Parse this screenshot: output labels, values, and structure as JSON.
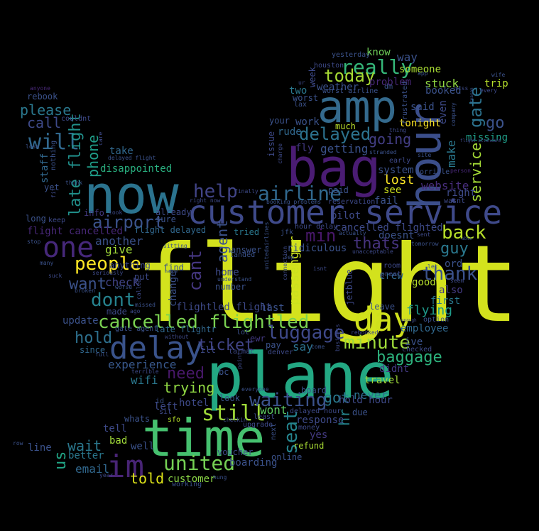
{
  "words": [
    {
      "text": "flight",
      "color": "#d3e21d"
    },
    {
      "text": "time",
      "color": "#46c06f"
    },
    {
      "text": "plane",
      "color": "#23a883"
    },
    {
      "text": "now",
      "color": "#2b738e"
    },
    {
      "text": "bag",
      "color": "#4a1c73"
    },
    {
      "text": "amp",
      "color": "#346a8d"
    },
    {
      "text": "hour",
      "color": "#3b4e8a"
    },
    {
      "text": "customer service",
      "color": "#3f4a8a"
    },
    {
      "text": "delay",
      "color": "#3a538b"
    },
    {
      "text": "day",
      "color": "#cfe11b"
    },
    {
      "text": "im",
      "color": "#482475"
    },
    {
      "text": "one",
      "color": "#46287a"
    },
    {
      "text": "cancelled flightled",
      "color": "#7ad151"
    },
    {
      "text": "still",
      "color": "#a0da39"
    },
    {
      "text": "airline",
      "color": "#31688e"
    },
    {
      "text": "help",
      "color": "#414487"
    },
    {
      "text": "united",
      "color": "#75d054"
    },
    {
      "text": "thank",
      "color": "#3b528b"
    },
    {
      "text": "back",
      "color": "#b8de29"
    },
    {
      "text": "people",
      "color": "#fde725"
    },
    {
      "text": "waiting",
      "color": "#3b528b"
    },
    {
      "text": "delayed",
      "color": "#2c728e"
    },
    {
      "text": "luggage",
      "color": "#3e4989"
    },
    {
      "text": "minute",
      "color": "#9fda3a"
    },
    {
      "text": "seat",
      "color": "#25848e"
    },
    {
      "text": "dont",
      "color": "#26828e"
    },
    {
      "text": "airport",
      "color": "#3b528b"
    },
    {
      "text": "ticket",
      "color": "#414487"
    },
    {
      "text": "cant",
      "color": "#453781"
    },
    {
      "text": "will",
      "color": "#31688e"
    },
    {
      "text": "really",
      "color": "#35b779"
    },
    {
      "text": "today",
      "color": "#a8db34"
    },
    {
      "text": "please",
      "color": "#2a788e"
    },
    {
      "text": "call",
      "color": "#3e4a89"
    },
    {
      "text": "late flight",
      "color": "#21918c"
    },
    {
      "text": "phone",
      "color": "#1f9e89"
    },
    {
      "text": "need",
      "color": "#48186a"
    },
    {
      "text": "trying",
      "color": "#90d743"
    },
    {
      "text": "hold",
      "color": "#2d708e"
    },
    {
      "text": "want",
      "color": "#3b528b"
    },
    {
      "text": "baggage",
      "color": "#2db27d"
    },
    {
      "text": "wait",
      "color": "#2a788e"
    },
    {
      "text": "us",
      "color": "#21a585"
    },
    {
      "text": "told",
      "color": "#dde318"
    },
    {
      "text": "email",
      "color": "#31688e"
    },
    {
      "text": "gate",
      "color": "#2c728e"
    },
    {
      "text": "service",
      "color": "#a5db36"
    },
    {
      "text": "go",
      "color": "#3b528b"
    },
    {
      "text": "guy",
      "color": "#2a788e"
    },
    {
      "text": "thats",
      "color": "#46337e"
    },
    {
      "text": "min",
      "color": "#48186a"
    },
    {
      "text": "flying",
      "color": "#1f9a8a"
    },
    {
      "text": "hr",
      "color": "#25858e"
    },
    {
      "text": "got",
      "color": "#29798e"
    },
    {
      "text": "going",
      "color": "#433e85"
    },
    {
      "text": "lost",
      "color": "#fde725"
    },
    {
      "text": "stuck",
      "color": "#90d743"
    },
    {
      "text": "tonight",
      "color": "#fde725"
    },
    {
      "text": "never",
      "color": "#2c718e"
    },
    {
      "text": "wont",
      "color": "#5ec962"
    },
    {
      "text": "agent",
      "color": "#3b528b"
    },
    {
      "text": "passenger",
      "color": "#cae11f"
    },
    {
      "text": "experience",
      "color": "#38588c"
    },
    {
      "text": "wifi",
      "color": "#2a788e"
    },
    {
      "text": "hotel",
      "color": "#3e4a89"
    },
    {
      "text": "boarding",
      "color": "#3b528b"
    },
    {
      "text": "customer",
      "color": "#8bd646"
    },
    {
      "text": "say",
      "color": "#2c728e"
    },
    {
      "text": "check",
      "color": "#414487"
    },
    {
      "text": "another",
      "color": "#3b528b"
    },
    {
      "text": "give",
      "color": "#a0da39"
    },
    {
      "text": "first",
      "color": "#2a788e"
    },
    {
      "text": "also",
      "color": "#443a83"
    },
    {
      "text": "ord",
      "color": "#3b528b"
    },
    {
      "text": "good",
      "color": "#b5de2b"
    },
    {
      "text": "employee",
      "color": "#31688e"
    },
    {
      "text": "website",
      "color": "#472d7b"
    },
    {
      "text": "system",
      "color": "#3b528b"
    },
    {
      "text": "see",
      "color": "#cde11d"
    },
    {
      "text": "right",
      "color": "#3e4a89"
    },
    {
      "text": "know",
      "color": "#6ece58"
    },
    {
      "text": "way",
      "color": "#3b528b"
    },
    {
      "text": "someone",
      "color": "#a8db34"
    },
    {
      "text": "problem",
      "color": "#482878"
    },
    {
      "text": "weather",
      "color": "#3b528b"
    },
    {
      "text": "two",
      "color": "#2a788e"
    },
    {
      "text": "week",
      "color": "#3e4a89"
    },
    {
      "text": "booked",
      "color": "#3b528b"
    },
    {
      "text": "trip",
      "color": "#b5de2b"
    },
    {
      "text": "said",
      "color": "#3b528b"
    },
    {
      "text": "much",
      "color": "#b8de29"
    },
    {
      "text": "work",
      "color": "#3b528b"
    },
    {
      "text": "rude",
      "color": "#31688e"
    },
    {
      "text": "fly",
      "color": "#443a83"
    },
    {
      "text": "getting",
      "color": "#3b528b"
    },
    {
      "text": "make",
      "color": "#2a788e"
    },
    {
      "text": "missing",
      "color": "#1f9e89"
    },
    {
      "text": "take",
      "color": "#31688e"
    },
    {
      "text": "disappointed",
      "color": "#29af7f"
    },
    {
      "text": "staff",
      "color": "#31688e"
    },
    {
      "text": "yet",
      "color": "#3b528b"
    },
    {
      "text": "info",
      "color": "#443a83"
    },
    {
      "text": "already",
      "color": "#3e4a89"
    },
    {
      "text": "flight delayed",
      "color": "#31688e"
    },
    {
      "text": "flight cancelled",
      "color": "#482878"
    },
    {
      "text": "long",
      "color": "#3b528b"
    },
    {
      "text": "home",
      "color": "#3e4a89"
    },
    {
      "text": "answer",
      "color": "#3b528b"
    },
    {
      "text": "tried",
      "color": "#2a788e"
    },
    {
      "text": "last",
      "color": "#3b528b"
    },
    {
      "text": "flightled flight",
      "color": "#3e4a89"
    },
    {
      "text": "change",
      "color": "#3b528b"
    },
    {
      "text": "made",
      "color": "#3e4a89"
    },
    {
      "text": "update",
      "color": "#3b528b"
    },
    {
      "text": "since",
      "color": "#31688e"
    },
    {
      "text": "late flightr",
      "color": "#31688e"
    },
    {
      "text": "pay",
      "color": "#3b528b"
    },
    {
      "text": "ewr",
      "color": "#443a83"
    },
    {
      "text": "crew",
      "color": "#31688e"
    },
    {
      "text": "leave",
      "color": "#3b528b"
    },
    {
      "text": "didnt",
      "color": "#443a83"
    },
    {
      "text": "travel",
      "color": "#a0da39"
    },
    {
      "text": "board",
      "color": "#3b528b"
    },
    {
      "text": "hold hour",
      "color": "#3e4a89"
    },
    {
      "text": "due",
      "color": "#3b528b"
    },
    {
      "text": "response",
      "color": "#3e4a89"
    },
    {
      "text": "refund",
      "color": "#a8db34"
    },
    {
      "text": "yes",
      "color": "#443a83"
    },
    {
      "text": "online",
      "color": "#3b528b"
    },
    {
      "text": "delayed hour",
      "color": "#3e4a89"
    },
    {
      "text": "look",
      "color": "#3b528b"
    },
    {
      "text": "tell",
      "color": "#3e4a89"
    },
    {
      "text": "whats",
      "color": "#3b528b"
    },
    {
      "text": "bad",
      "color": "#a0da39"
    },
    {
      "text": "well",
      "color": "#3b528b"
    },
    {
      "text": "better",
      "color": "#2a788e"
    },
    {
      "text": "line",
      "color": "#3b528b"
    },
    {
      "text": "voucher",
      "color": "#3e4a89"
    },
    {
      "text": "working",
      "color": "#3b528b"
    },
    {
      "text": "sfo",
      "color": "#b5de2b"
    },
    {
      "text": "left",
      "color": "#3e4a89"
    },
    {
      "text": "fail",
      "color": "#3b528b"
    },
    {
      "text": "issue",
      "color": "#3e4a89"
    },
    {
      "text": "worst",
      "color": "#3b528b"
    },
    {
      "text": "your",
      "color": "#3b528b"
    },
    {
      "text": "rebook",
      "color": "#3b528b"
    },
    {
      "text": "houston",
      "color": "#3e4a89"
    },
    {
      "text": "yesterday",
      "color": "#3b528b"
    },
    {
      "text": "worst airline",
      "color": "#3b528b"
    },
    {
      "text": "cancelled flighted",
      "color": "#3e4a89"
    },
    {
      "text": "doesnt",
      "color": "#3b528b"
    },
    {
      "text": "pilot",
      "color": "#3e4a89"
    },
    {
      "text": "ridiculous",
      "color": "#3b528b"
    },
    {
      "text": "reservation",
      "color": "#3e4a89"
    },
    {
      "text": "paid",
      "color": "#3b528b"
    },
    {
      "text": "jetblue",
      "color": "#3e4a89"
    },
    {
      "text": "jfk",
      "color": "#3b528b"
    },
    {
      "text": "hour delay",
      "color": "#3e4a89"
    },
    {
      "text": "frustrated",
      "color": "#3b528b"
    },
    {
      "text": "room",
      "color": "#3e4a89"
    },
    {
      "text": "ive",
      "color": "#3b528b"
    },
    {
      "text": "checked",
      "color": "#3e4a89"
    },
    {
      "text": "gate agent",
      "color": "#3b528b"
    },
    {
      "text": "anything",
      "color": "#3e4a89"
    },
    {
      "text": "sure",
      "color": "#3b528b"
    },
    {
      "text": "keep",
      "color": "#3e4a89"
    },
    {
      "text": "horrible",
      "color": "#3b528b"
    },
    {
      "text": "wasnt",
      "color": "#3e4a89"
    },
    {
      "text": "number",
      "color": "#3b528b"
    },
    {
      "text": "put",
      "color": "#3e4a89"
    },
    {
      "text": "find",
      "color": "#3b528b"
    },
    {
      "text": "ill",
      "color": "#3e4a89"
    },
    {
      "text": "bc",
      "color": "#3b528b"
    },
    {
      "text": "upgrade",
      "color": "#3e4a89"
    },
    {
      "text": "next",
      "color": "#3b528b"
    },
    {
      "text": "money",
      "color": "#3e4a89"
    },
    {
      "text": "nothing",
      "color": "#3b528b"
    },
    {
      "text": "couldnt",
      "color": "#3e4a89"
    },
    {
      "text": "anyone",
      "color": "#482878"
    },
    {
      "text": "lose",
      "color": "#3b528b"
    },
    {
      "text": "care",
      "color": "#3e4a89"
    },
    {
      "text": "delayed flight",
      "color": "#3b528b"
    },
    {
      "text": "denver",
      "color": "#3e4a89"
    },
    {
      "text": "dm",
      "color": "#3b528b"
    },
    {
      "text": "early",
      "color": "#3e4a89"
    },
    {
      "text": "site",
      "color": "#3b528b"
    },
    {
      "text": "ur",
      "color": "#3e4a89"
    },
    {
      "text": "lax",
      "color": "#3b528b"
    },
    {
      "text": "seem",
      "color": "#3e4a89"
    },
    {
      "text": "option",
      "color": "#3b528b"
    },
    {
      "text": "great",
      "color": "#3e4a89"
    },
    {
      "text": "many",
      "color": "#3b528b"
    },
    {
      "text": "suck",
      "color": "#3e4a89"
    },
    {
      "text": "stop",
      "color": "#3b528b"
    },
    {
      "text": "fit",
      "color": "#3e4a89"
    },
    {
      "text": "think",
      "color": "#3b528b"
    },
    {
      "text": "isnt",
      "color": "#3e4a89"
    },
    {
      "text": "come",
      "color": "#3b528b"
    },
    {
      "text": "rebooked",
      "color": "#3e4a89"
    },
    {
      "text": "lot",
      "color": "#3b528b"
    },
    {
      "text": "tarmac",
      "color": "#3e4a89"
    },
    {
      "text": "id",
      "color": "#3b528b"
    },
    {
      "text": "sit",
      "color": "#3e4a89"
    },
    {
      "text": "landed",
      "color": "#3b528b"
    },
    {
      "text": "least",
      "color": "#3e4a89"
    },
    {
      "text": "row",
      "color": "#3b528b"
    },
    {
      "text": "year",
      "color": "#3e4a89"
    },
    {
      "text": "hung",
      "color": "#3b528b"
    },
    {
      "text": "sent",
      "color": "#3e4a89"
    },
    {
      "text": "actually",
      "color": "#3b528b"
    },
    {
      "text": "unacceptable",
      "color": "#3e4a89"
    },
    {
      "text": "tomorrow",
      "color": "#3b528b"
    },
    {
      "text": "finally",
      "color": "#3e4a89"
    },
    {
      "text": "booking problems",
      "color": "#3b528b"
    },
    {
      "text": "right now",
      "color": "#3e4a89"
    },
    {
      "text": "wife",
      "color": "#3b528b"
    },
    {
      "text": "every",
      "color": "#3e4a89"
    },
    {
      "text": "company",
      "color": "#3b528b"
    },
    {
      "text": "miss",
      "color": "#3e4a89"
    },
    {
      "text": "app",
      "color": "#3b528b"
    },
    {
      "text": "charge",
      "color": "#3e4a89"
    },
    {
      "text": "stranded",
      "color": "#3b528b"
    },
    {
      "text": "connection",
      "color": "#3e4a89"
    },
    {
      "text": "missed",
      "color": "#3b528b"
    },
    {
      "text": "terrible",
      "color": "#3e4a89"
    },
    {
      "text": "sitting",
      "color": "#3b528b"
    },
    {
      "text": "took",
      "color": "#3e4a89"
    },
    {
      "text": "broken",
      "color": "#3b528b"
    },
    {
      "text": "called",
      "color": "#3e4a89"
    },
    {
      "text": "worse",
      "color": "#3b528b"
    },
    {
      "text": "seriously",
      "color": "#3e4a89"
    },
    {
      "text": "understand",
      "color": "#3b528b"
    },
    {
      "text": "checkin",
      "color": "#3e4a89"
    },
    {
      "text": "everyone",
      "color": "#3b528b"
    },
    {
      "text": "ago",
      "color": "#3e4a89"
    },
    {
      "text": "full",
      "color": "#3b528b"
    },
    {
      "text": "without",
      "color": "#3e4a89"
    },
    {
      "text": "maybe",
      "color": "#3b528b"
    },
    {
      "text": "point",
      "color": "#3e4a89"
    },
    {
      "text": "unitedairlines",
      "color": "#3b528b"
    },
    {
      "text": "business",
      "color": "#3e4a89"
    },
    {
      "text": "rep",
      "color": "#3b528b"
    },
    {
      "text": "thing",
      "color": "#3e4a89"
    },
    {
      "text": "able",
      "color": "#3b528b"
    },
    {
      "text": "enough",
      "color": "#3e4a89"
    },
    {
      "text": "let",
      "color": "#3b528b"
    },
    {
      "text": "person",
      "color": "#482878"
    },
    {
      "text": "even",
      "color": "#3e4a89"
    },
    {
      "text": "reason",
      "color": "#3b528b"
    },
    {
      "text": "flight attendant",
      "color": "#3e4a89"
    }
  ]
}
